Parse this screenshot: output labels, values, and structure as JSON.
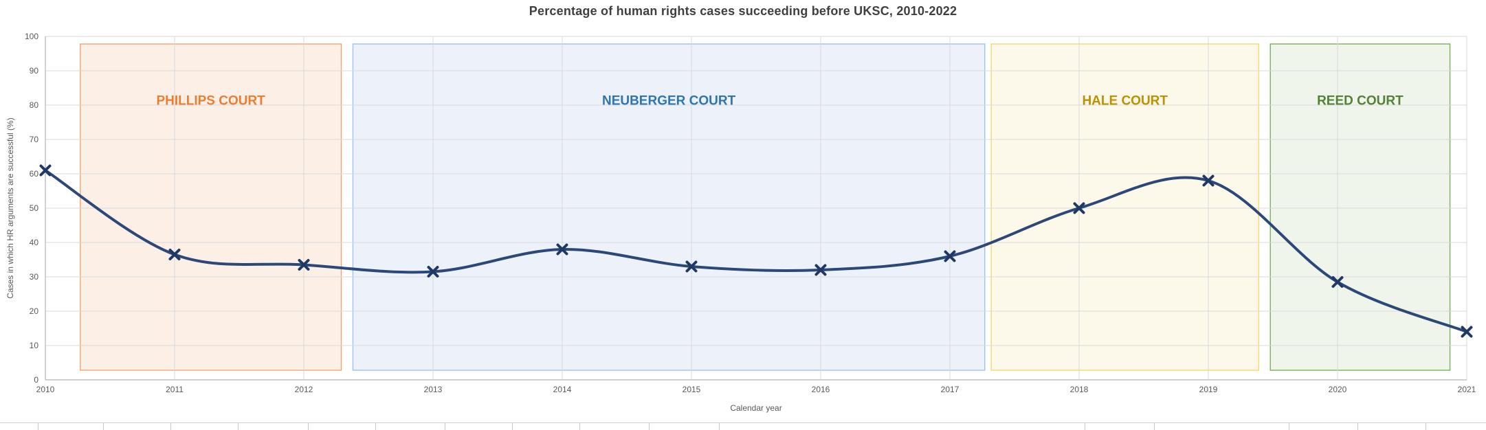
{
  "title": "Percentage of human rights cases succeeding before UKSC, 2010-2022",
  "chart_data": {
    "type": "line",
    "x": [
      2010,
      2011,
      2012,
      2013,
      2014,
      2015,
      2016,
      2017,
      2018,
      2019,
      2020,
      2021
    ],
    "values": [
      61,
      36.5,
      33.5,
      31.5,
      38,
      33,
      32,
      36,
      50,
      58,
      28.5,
      14
    ],
    "x_tick_labels": [
      "2010",
      "2011",
      "2012",
      "2013",
      "2014",
      "2015",
      "2016",
      "2017",
      "2018",
      "2019",
      "2020",
      "2021"
    ],
    "y_tick_labels": [
      "0",
      "10",
      "20",
      "30",
      "40",
      "50",
      "60",
      "70",
      "80",
      "90",
      "100"
    ],
    "xlabel": "Calendar year",
    "ylabel": "Cases in which HR arguments are successful (%)",
    "xlim": [
      2010,
      2021
    ],
    "ylim": [
      0,
      100
    ],
    "y_tick_step": 10,
    "grid": true,
    "legend_position": "none",
    "smooth": true,
    "marker": "x",
    "bands": [
      {
        "label": "PHILLIPS COURT",
        "x_start": 2010.27,
        "x_end": 2012.29,
        "y_bottom": 2.8,
        "y_top": 97.8,
        "label_y": 81.5,
        "fill": "#FBEFE6",
        "border": "#EFA674",
        "label_color": "#ED7D31"
      },
      {
        "label": "NEUBERGER COURT",
        "x_start": 2012.38,
        "x_end": 2017.27,
        "y_bottom": 2.8,
        "y_top": 97.8,
        "label_y": 81.5,
        "fill": "#EDF2FA",
        "border": "#9DC3E6",
        "label_color": "#2E75B6"
      },
      {
        "label": "HALE COURT",
        "x_start": 2017.32,
        "x_end": 2019.39,
        "y_bottom": 2.8,
        "y_top": 97.8,
        "label_y": 81.5,
        "fill": "#FDF9EA",
        "border": "#F7DA69",
        "label_color": "#BF9000"
      },
      {
        "label": "REED COURT",
        "x_start": 2019.48,
        "x_end": 2020.87,
        "y_bottom": 2.8,
        "y_top": 97.8,
        "label_y": 81.5,
        "fill": "#EFF5EB",
        "border": "#79B259",
        "label_color": "#538135"
      }
    ]
  },
  "style": {
    "line_color": "#2B4878",
    "marker_color": "#1F3864",
    "grid_color": "#D9D9D9",
    "axis_color": "#BFBFBF",
    "tick_label_color": "#595959",
    "title_color": "#3F3F3F"
  },
  "spreadsheet": {
    "cell_ticks_x": [
      55,
      150,
      248,
      346,
      448,
      546,
      647,
      745,
      843,
      944,
      1046,
      1578,
      1679,
      1875,
      1975,
      2074
    ]
  }
}
